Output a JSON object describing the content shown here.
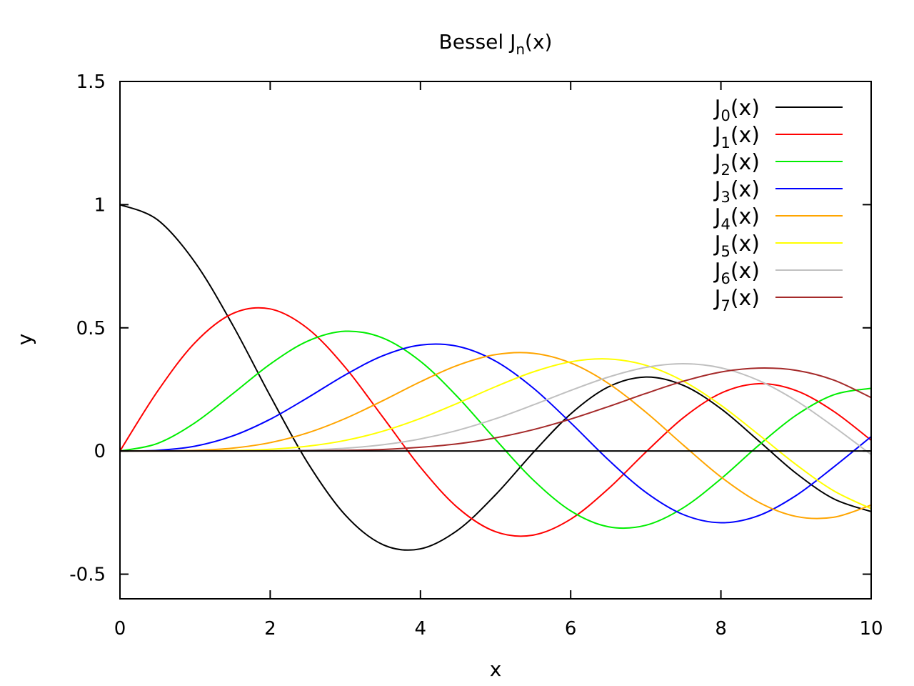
{
  "chart_data": {
    "type": "line",
    "title": "Bessel J",
    "title_sub": "n",
    "title_suffix": "(x)",
    "xlabel": "x",
    "ylabel": "y",
    "xlim": [
      0,
      10
    ],
    "ylim": [
      -0.6,
      1.5
    ],
    "xticks": [
      0,
      2,
      4,
      6,
      8,
      10
    ],
    "xtick_labels": [
      "0",
      "2",
      "4",
      "6",
      "8",
      "10"
    ],
    "yticks": [
      -0.5,
      0,
      0.5,
      1,
      1.5
    ],
    "ytick_labels": [
      "-0.5",
      "0",
      "0.5",
      "1",
      "1.5"
    ],
    "grid": false,
    "legend_position": "top-right",
    "zero_line": true,
    "x": [
      0,
      0.5,
      1,
      1.5,
      2,
      2.5,
      3,
      3.5,
      4,
      4.5,
      5,
      5.5,
      6,
      6.5,
      7,
      7.5,
      8,
      8.5,
      9,
      9.5,
      10
    ],
    "series": [
      {
        "name_main": "J",
        "name_sub": "0",
        "name_suffix": "(x)",
        "color": "#000000",
        "values": [
          1,
          0.9385,
          0.7652,
          0.5118,
          0.2239,
          -0.0484,
          -0.2601,
          -0.3801,
          -0.3971,
          -0.3205,
          -0.1776,
          -0.0068,
          0.1506,
          0.2601,
          0.3001,
          0.2663,
          0.1717,
          0.0419,
          -0.0903,
          -0.1939,
          -0.2459
        ]
      },
      {
        "name_main": "J",
        "name_sub": "1",
        "name_suffix": "(x)",
        "color": "#ff0000",
        "values": [
          0,
          0.2423,
          0.4401,
          0.5579,
          0.5767,
          0.4971,
          0.3391,
          0.1374,
          -0.066,
          -0.2311,
          -0.3276,
          -0.3414,
          -0.2767,
          -0.1538,
          -0.0047,
          0.1352,
          0.2346,
          0.2731,
          0.2453,
          0.1613,
          0.0435
        ]
      },
      {
        "name_main": "J",
        "name_sub": "2",
        "name_suffix": "(x)",
        "color": "#00ee00",
        "values": [
          0,
          0.0306,
          0.1149,
          0.2321,
          0.3528,
          0.4461,
          0.4861,
          0.4586,
          0.3641,
          0.2178,
          0.0466,
          -0.1173,
          -0.2429,
          -0.3074,
          -0.3014,
          -0.2303,
          -0.113,
          0.0223,
          0.1448,
          0.2279,
          0.2546
        ]
      },
      {
        "name_main": "J",
        "name_sub": "3",
        "name_suffix": "(x)",
        "color": "#0000ff",
        "values": [
          0,
          0.0026,
          0.0196,
          0.061,
          0.1289,
          0.2166,
          0.3091,
          0.3868,
          0.4302,
          0.4247,
          0.3648,
          0.2561,
          0.1148,
          -0.0353,
          -0.1676,
          -0.2581,
          -0.2911,
          -0.2626,
          -0.1809,
          -0.0653,
          0.0584
        ]
      },
      {
        "name_main": "J",
        "name_sub": "4",
        "name_suffix": "(x)",
        "color": "#ffa500",
        "values": [
          0,
          0.0002,
          0.0025,
          0.0118,
          0.034,
          0.0738,
          0.132,
          0.2044,
          0.2811,
          0.3484,
          0.3912,
          0.3967,
          0.3576,
          0.2748,
          0.1578,
          0.0238,
          -0.1054,
          -0.2077,
          -0.2655,
          -0.2691,
          -0.2196
        ]
      },
      {
        "name_main": "J",
        "name_sub": "5",
        "name_suffix": "(x)",
        "color": "#ffff00",
        "values": [
          0,
          0,
          0.0002,
          0.0018,
          0.007,
          0.0195,
          0.043,
          0.0804,
          0.1321,
          0.1947,
          0.2611,
          0.3209,
          0.3621,
          0.3736,
          0.3479,
          0.2835,
          0.1858,
          0.0671,
          -0.055,
          -0.1613,
          -0.2341
        ]
      },
      {
        "name_main": "J",
        "name_sub": "6",
        "name_suffix": "(x)",
        "color": "#c0c0c0",
        "values": [
          0,
          0,
          0,
          0.0002,
          0.0012,
          0.0042,
          0.0114,
          0.0254,
          0.0491,
          0.0843,
          0.131,
          0.1868,
          0.2458,
          0.2999,
          0.3392,
          0.3541,
          0.3376,
          0.2867,
          0.2043,
          0.0993,
          -0.0145
        ]
      },
      {
        "name_main": "J",
        "name_sub": "7",
        "name_suffix": "(x)",
        "color": "#a52a2a",
        "values": [
          0,
          0,
          0,
          0,
          0.0002,
          0.0008,
          0.0025,
          0.0063,
          0.0152,
          0.0295,
          0.0534,
          0.0866,
          0.1296,
          0.1801,
          0.2336,
          0.2833,
          0.3206,
          0.3365,
          0.3275,
          0.2882,
          0.2167
        ]
      }
    ]
  }
}
